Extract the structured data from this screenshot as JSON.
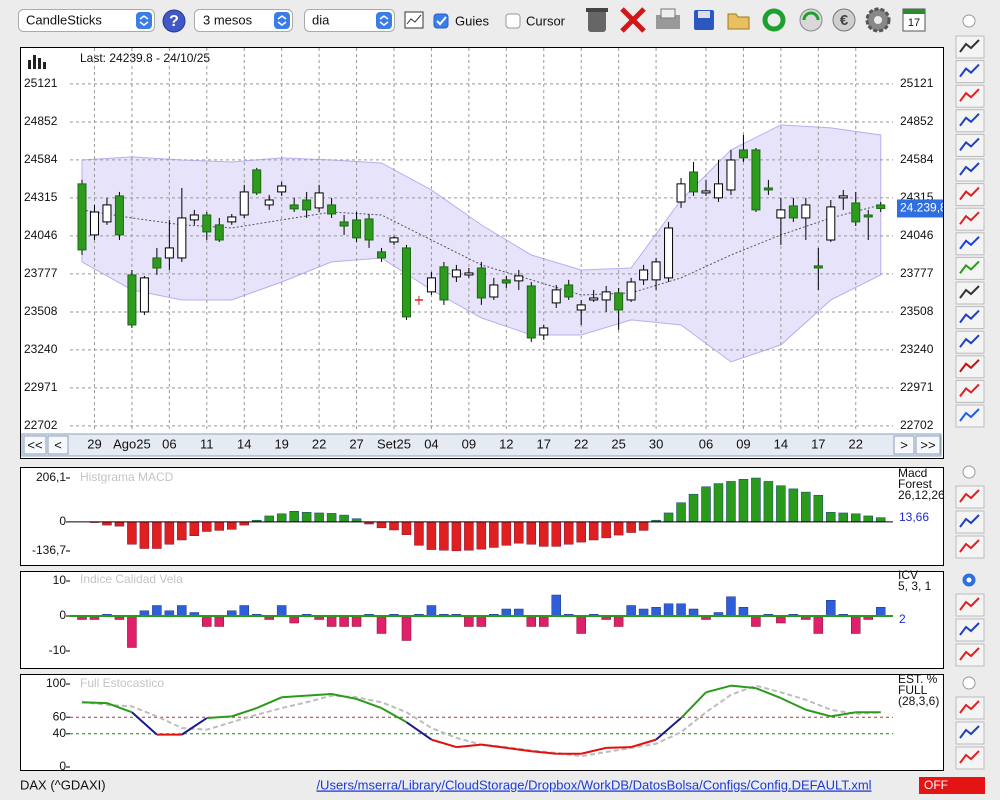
{
  "toolbar": {
    "chart_type_select": "CandleSticks",
    "help": "?",
    "period_select": "3 mesos",
    "interval_select": "dia",
    "guides": {
      "label": "Guies",
      "checked": true
    },
    "cursor": {
      "label": "Cursor",
      "checked": false
    },
    "calendar_icon": "17"
  },
  "navigation": [
    "<<",
    "<",
    ">",
    ">>"
  ],
  "status": {
    "symbol": "DAX (^GDAXI)",
    "path": "/Users/mserra/Library/CloudStorage/Dropbox/WorkDB/DatosBolsa/Configs/Config.DEFAULT.xml",
    "toggle": "OFF"
  },
  "chart_data": [
    {
      "type": "candlestick",
      "title": "Last: 24239.8 - 24/10/25",
      "last_label": "24.239,8",
      "up_color": "#ffffff",
      "down_color": "#2e9a1e",
      "doji_color": "#e02020",
      "grid": true,
      "ylim": [
        22659,
        25375
      ],
      "yticks": [
        25121,
        24852,
        24584,
        24315,
        24046,
        23777,
        23508,
        23240,
        22971,
        22702
      ],
      "categories": [
        null,
        "29",
        null,
        null,
        "Ago25",
        null,
        null,
        "06",
        null,
        null,
        "11",
        null,
        null,
        "14",
        null,
        null,
        "19",
        null,
        null,
        "22",
        null,
        null,
        "27",
        null,
        null,
        "Set25",
        null,
        null,
        "04",
        null,
        null,
        "09",
        null,
        null,
        "12",
        null,
        null,
        "17",
        null,
        null,
        "22",
        null,
        null,
        "25",
        null,
        null,
        "30",
        null,
        null,
        null,
        "06",
        null,
        null,
        "09",
        null,
        null,
        "14",
        null,
        null,
        "17",
        null,
        null,
        "22",
        null,
        null
      ],
      "values": [
        [
          24414,
          24442,
          23911,
          23947
        ],
        [
          24053,
          24265,
          24017,
          24215
        ],
        [
          24145,
          24315,
          24124,
          24265
        ],
        [
          24329,
          24357,
          24017,
          24053
        ],
        [
          23770,
          23805,
          23395,
          23416
        ],
        [
          23508,
          23763,
          23487,
          23749
        ],
        [
          23890,
          23961,
          23770,
          23819
        ],
        [
          23890,
          24159,
          23805,
          23961
        ],
        [
          23890,
          24385,
          23862,
          24173
        ],
        [
          24159,
          24230,
          24124,
          24194
        ],
        [
          24194,
          24215,
          24017,
          24074
        ],
        [
          24124,
          24173,
          24003,
          24017
        ],
        [
          24145,
          24201,
          24124,
          24180
        ],
        [
          24194,
          24407,
          24173,
          24357
        ],
        [
          24513,
          24527,
          24336,
          24350
        ],
        [
          24265,
          24336,
          24230,
          24300
        ],
        [
          24357,
          24428,
          24329,
          24399
        ],
        [
          24265,
          24315,
          24215,
          24237
        ],
        [
          24300,
          24357,
          24173,
          24230
        ],
        [
          24244,
          24407,
          24215,
          24350
        ],
        [
          24265,
          24315,
          24173,
          24201
        ],
        [
          24145,
          24194,
          24053,
          24116
        ],
        [
          24159,
          24215,
          24003,
          24032
        ],
        [
          24166,
          24201,
          23961,
          24017
        ],
        [
          23933,
          23961,
          23862,
          23890
        ],
        [
          24003,
          24046,
          23982,
          24032
        ],
        [
          23961,
          23982,
          23452,
          23473
        ],
        [
          23593,
          23621,
          23558,
          23593
        ],
        [
          23650,
          23791,
          23628,
          23749
        ],
        [
          23827,
          23862,
          23558,
          23593
        ],
        [
          23756,
          23841,
          23720,
          23805
        ],
        [
          23770,
          23819,
          23749,
          23784
        ],
        [
          23819,
          23862,
          23558,
          23607
        ],
        [
          23614,
          23749,
          23593,
          23699
        ],
        [
          23735,
          23763,
          23678,
          23713
        ],
        [
          23728,
          23805,
          23664,
          23763
        ],
        [
          23692,
          23720,
          23296,
          23324
        ],
        [
          23345,
          23416,
          23310,
          23395
        ],
        [
          23572,
          23699,
          23536,
          23664
        ],
        [
          23699,
          23735,
          23593,
          23614
        ],
        [
          23522,
          23593,
          23416,
          23558
        ],
        [
          23593,
          23664,
          23579,
          23607
        ],
        [
          23593,
          23692,
          23508,
          23650
        ],
        [
          23643,
          23678,
          23381,
          23522
        ],
        [
          23593,
          23749,
          23579,
          23720
        ],
        [
          23735,
          23841,
          23699,
          23805
        ],
        [
          23735,
          23890,
          23664,
          23862
        ],
        [
          23749,
          24145,
          23720,
          24102
        ],
        [
          24286,
          24456,
          24244,
          24414
        ],
        [
          24498,
          24569,
          24329,
          24357
        ],
        [
          24350,
          24442,
          24329,
          24364
        ],
        [
          24315,
          24583,
          24286,
          24414
        ],
        [
          24371,
          24654,
          24336,
          24583
        ],
        [
          24654,
          24760,
          24569,
          24598
        ],
        [
          24654,
          24668,
          24215,
          24230
        ],
        [
          24385,
          24442,
          24336,
          24371
        ],
        [
          24173,
          24315,
          23982,
          24230
        ],
        [
          24258,
          24315,
          24145,
          24173
        ],
        [
          24173,
          24315,
          24017,
          24265
        ],
        [
          23834,
          23961,
          23664,
          23819
        ],
        [
          24017,
          24300,
          24003,
          24251
        ],
        [
          24315,
          24371,
          24230,
          24329
        ],
        [
          24279,
          24357,
          24116,
          24145
        ],
        [
          24194,
          24230,
          24017,
          24180
        ],
        [
          24265,
          24286,
          24215,
          24240
        ]
      ],
      "bands": {
        "color": "#b9aef0",
        "x": [
          0,
          4,
          8,
          12,
          16,
          20,
          24,
          28,
          32,
          36,
          40,
          44,
          48,
          52,
          56,
          60,
          64
        ],
        "upper": [
          24583,
          24605,
          24583,
          24569,
          24598,
          24583,
          24562,
          24371,
          24124,
          23911,
          23805,
          23819,
          24300,
          24654,
          24831,
          24810,
          24760
        ],
        "middle": [
          24230,
          24173,
          24124,
          24102,
          24159,
          24215,
          24194,
          24017,
          23841,
          23735,
          23628,
          23643,
          23749,
          23911,
          24053,
          24173,
          24265
        ],
        "lower": [
          23862,
          23664,
          23593,
          23593,
          23720,
          23862,
          23890,
          23664,
          23466,
          23345,
          23345,
          23452,
          23416,
          23155,
          23275,
          23593,
          23770
        ]
      }
    },
    {
      "type": "histogram",
      "title": "Histgrama MACD",
      "legend": [
        "Macd",
        "Forest",
        "26,12,26"
      ],
      "legend_value": "13,66",
      "up_color": "#2a9a1a",
      "down_color": "#e02020",
      "ylim": [
        -136.7,
        206.1
      ],
      "yticks": [
        {
          "value": 206.1,
          "label": "206,1"
        },
        0,
        {
          "value": -136.7,
          "label": "-136,7"
        }
      ],
      "values": [
        0,
        -3,
        -15,
        -20,
        -105,
        -125,
        -125,
        -105,
        -85,
        -65,
        -45,
        -40,
        -35,
        -15,
        8,
        28,
        38,
        50,
        45,
        42,
        40,
        32,
        15,
        -10,
        -28,
        -38,
        -60,
        -110,
        -130,
        -133,
        -136,
        -133,
        -128,
        -120,
        -110,
        -100,
        -105,
        -115,
        -115,
        -105,
        -95,
        -85,
        -75,
        -62,
        -50,
        -40,
        8,
        42,
        90,
        130,
        165,
        180,
        190,
        200,
        206,
        190,
        170,
        155,
        140,
        125,
        45,
        42,
        38,
        28,
        20
      ]
    },
    {
      "type": "bar",
      "title": "Indice Calidad Vela",
      "legend": [
        "ICV",
        "5, 3, 1"
      ],
      "legend_value": 2,
      "up_color": "#2f5fd8",
      "down_color": "#e0206a",
      "ylim": [
        -10,
        10
      ],
      "yticks": [
        10,
        0,
        -10
      ],
      "values": [
        -1,
        -1,
        0.5,
        -1,
        -9,
        1.5,
        3,
        1.5,
        3,
        1,
        -3,
        -3,
        1.5,
        3,
        0.5,
        -1,
        3,
        -2,
        0.5,
        -1,
        -3,
        -3,
        -3,
        0.5,
        -5,
        0.5,
        -7,
        0.5,
        3,
        0.5,
        0.5,
        -3,
        -3,
        0.5,
        2,
        2,
        -3,
        -3,
        6,
        0.5,
        -5,
        0.5,
        -1,
        -3,
        3,
        2,
        2.5,
        3.5,
        3.5,
        2,
        -1,
        1,
        5.5,
        2.5,
        -3,
        0.5,
        -2,
        0.5,
        -1,
        -5,
        4.5,
        0.5,
        -5,
        -1,
        2.5
      ]
    },
    {
      "type": "line",
      "title": "Full Estocastico",
      "legend": [
        "EST. %",
        "FULL",
        "(28,3,6)"
      ],
      "ylim": [
        0,
        100
      ],
      "yticks": [
        100,
        60,
        40,
        0
      ],
      "upper_level": 60,
      "lower_level": 40,
      "x": [
        0,
        2,
        4,
        6,
        8,
        10,
        12,
        14,
        16,
        18,
        20,
        22,
        24,
        26,
        28,
        30,
        32,
        34,
        36,
        38,
        40,
        42,
        44,
        46,
        48,
        50,
        52,
        54,
        56,
        58,
        60,
        62,
        64
      ],
      "series": [
        {
          "name": "%K",
          "color": "#2a9a1a",
          "mid_color": "#1a1a8a",
          "low_color": "#e01010",
          "values": [
            78,
            77,
            66,
            39,
            39,
            59,
            61,
            71,
            84,
            86,
            88,
            82,
            71,
            54,
            33,
            24,
            27,
            23,
            19,
            16,
            16,
            23,
            24,
            33,
            59,
            90,
            98,
            95,
            83,
            69,
            61,
            66,
            66
          ]
        },
        {
          "name": "%D",
          "color": "#bdbdbd",
          "values": [
            78,
            75,
            73,
            61,
            47,
            45,
            54,
            63,
            71,
            78,
            86,
            84,
            78,
            66,
            47,
            35,
            27,
            24,
            20,
            17,
            13,
            18,
            23,
            28,
            42,
            66,
            87,
            98,
            90,
            81,
            69,
            64,
            66
          ]
        }
      ]
    }
  ]
}
